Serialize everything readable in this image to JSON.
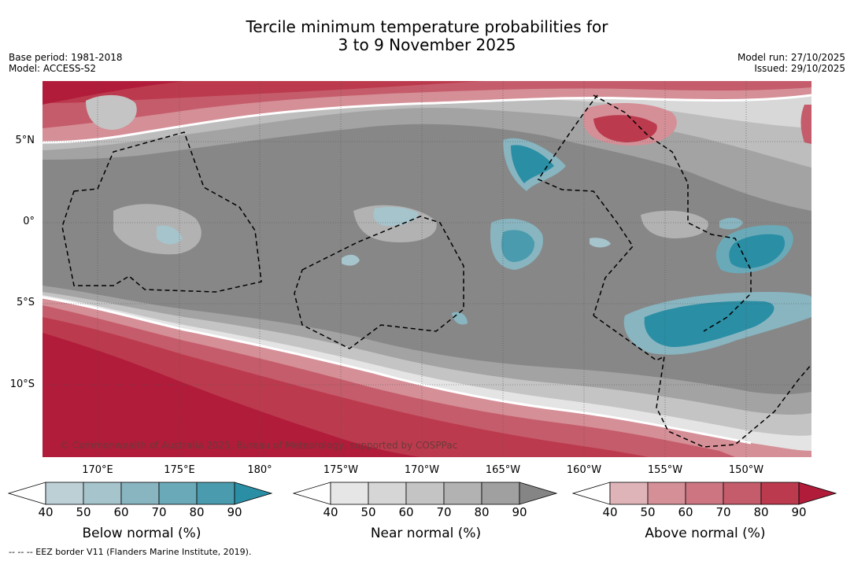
{
  "title": {
    "line1": "Tercile minimum temperature probabilities for",
    "line2": "3 to 9 November 2025"
  },
  "meta_left": {
    "base_period": "Base period: 1981-2018",
    "model": "Model: ACCESS-S2"
  },
  "meta_right": {
    "model_run": "Model run: 27/10/2025",
    "issued": "Issued: 29/10/2025"
  },
  "axes": {
    "lat_labels": [
      "5°N",
      "0°",
      "5°S",
      "10°S"
    ],
    "lon_labels": [
      "170°E",
      "175°E",
      "180°",
      "175°W",
      "170°W",
      "165°W",
      "160°W",
      "155°W",
      "150°W"
    ]
  },
  "copyright": "© Commonwealth of Australia 2025, Bureau of Meteorology, supported by COSPPac",
  "colorbars": [
    {
      "name": "below",
      "title": "Below normal (%)",
      "ticks": [
        "40",
        "50",
        "60",
        "70",
        "80",
        "90"
      ],
      "colors": [
        "#ffffff",
        "#bdd0d6",
        "#a6c4cc",
        "#88b5c0",
        "#6aaab8",
        "#4a9bad",
        "#2a8ea5"
      ]
    },
    {
      "name": "near",
      "title": "Near normal (%)",
      "ticks": [
        "40",
        "50",
        "60",
        "70",
        "80",
        "90"
      ],
      "colors": [
        "#ffffff",
        "#e6e6e6",
        "#d6d6d6",
        "#c4c4c4",
        "#b2b2b2",
        "#a0a0a0",
        "#858585"
      ]
    },
    {
      "name": "above",
      "title": "Above normal (%)",
      "ticks": [
        "40",
        "50",
        "60",
        "70",
        "80",
        "90"
      ],
      "colors": [
        "#ffffff",
        "#dfb4b9",
        "#d58f97",
        "#cd7682",
        "#c55c6b",
        "#bc3a4d",
        "#b01c3a"
      ]
    }
  ],
  "footer": "-- -- -- EEZ border V11 (Flanders Marine Institute, 2019)."
}
